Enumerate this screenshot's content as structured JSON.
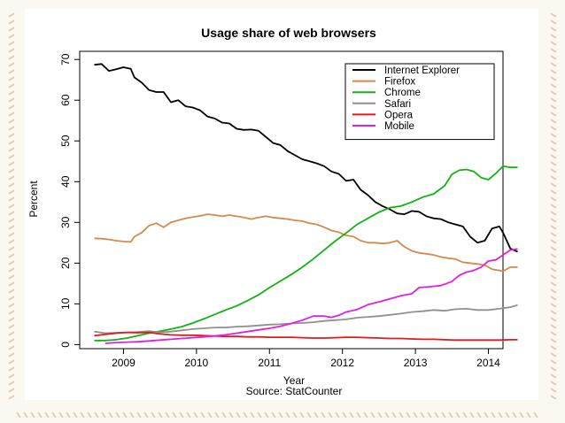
{
  "chart_data": {
    "type": "line",
    "title": "Usage share of web browsers",
    "xlabel": "Year",
    "ylabel": "Percent",
    "source": "Source: StatCounter",
    "xlim": [
      2008.4,
      2014.2
    ],
    "ylim": [
      -1,
      72
    ],
    "x_ticks": [
      2009,
      2010,
      2011,
      2012,
      2013,
      2014
    ],
    "y_ticks": [
      0,
      10,
      20,
      30,
      40,
      50,
      60,
      70
    ],
    "legend_position": "top-right",
    "grid": false,
    "series": [
      {
        "name": "Internet Explorer",
        "color": "#000000",
        "points": [
          [
            2008.6,
            68.7
          ],
          [
            2008.7,
            68.9
          ],
          [
            2008.8,
            67.2
          ],
          [
            2008.9,
            67.6
          ],
          [
            2009.0,
            68.1
          ],
          [
            2009.1,
            67.7
          ],
          [
            2009.15,
            65.6
          ],
          [
            2009.25,
            64.3
          ],
          [
            2009.35,
            62.5
          ],
          [
            2009.45,
            62.0
          ],
          [
            2009.55,
            62.0
          ],
          [
            2009.65,
            59.5
          ],
          [
            2009.75,
            60.0
          ],
          [
            2009.85,
            58.5
          ],
          [
            2009.95,
            58.2
          ],
          [
            2010.05,
            57.5
          ],
          [
            2010.15,
            56.0
          ],
          [
            2010.25,
            55.5
          ],
          [
            2010.35,
            54.5
          ],
          [
            2010.45,
            54.3
          ],
          [
            2010.55,
            53.0
          ],
          [
            2010.65,
            52.7
          ],
          [
            2010.75,
            52.8
          ],
          [
            2010.85,
            52.5
          ],
          [
            2010.95,
            51.0
          ],
          [
            2011.05,
            49.5
          ],
          [
            2011.15,
            49.0
          ],
          [
            2011.25,
            47.5
          ],
          [
            2011.35,
            46.5
          ],
          [
            2011.45,
            45.5
          ],
          [
            2011.55,
            45.0
          ],
          [
            2011.65,
            44.5
          ],
          [
            2011.75,
            43.8
          ],
          [
            2011.85,
            42.5
          ],
          [
            2011.95,
            41.9
          ],
          [
            2012.05,
            40.2
          ],
          [
            2012.15,
            40.5
          ],
          [
            2012.25,
            38.0
          ],
          [
            2012.35,
            36.7
          ],
          [
            2012.45,
            35.0
          ],
          [
            2012.55,
            34.0
          ],
          [
            2012.65,
            33.2
          ],
          [
            2012.75,
            32.2
          ],
          [
            2012.85,
            32.0
          ],
          [
            2012.95,
            32.8
          ],
          [
            2013.05,
            32.6
          ],
          [
            2013.15,
            31.5
          ],
          [
            2013.25,
            31.0
          ],
          [
            2013.35,
            30.8
          ],
          [
            2013.45,
            30.0
          ],
          [
            2013.55,
            29.5
          ],
          [
            2013.65,
            29.0
          ],
          [
            2013.75,
            26.5
          ],
          [
            2013.85,
            25.0
          ],
          [
            2013.95,
            25.5
          ],
          [
            2014.05,
            28.5
          ],
          [
            2014.15,
            29.0
          ],
          [
            2014.2,
            27.5
          ],
          [
            2014.3,
            23.6
          ],
          [
            2014.4,
            22.8
          ]
        ]
      },
      {
        "name": "Firefox",
        "color": "#d58a4b",
        "points": [
          [
            2008.6,
            26.1
          ],
          [
            2008.7,
            26.0
          ],
          [
            2008.8,
            25.8
          ],
          [
            2008.9,
            25.5
          ],
          [
            2009.0,
            25.3
          ],
          [
            2009.1,
            25.2
          ],
          [
            2009.15,
            26.5
          ],
          [
            2009.25,
            27.5
          ],
          [
            2009.35,
            29.2
          ],
          [
            2009.45,
            29.8
          ],
          [
            2009.55,
            28.8
          ],
          [
            2009.65,
            30.0
          ],
          [
            2009.75,
            30.5
          ],
          [
            2009.85,
            31.0
          ],
          [
            2009.95,
            31.3
          ],
          [
            2010.05,
            31.6
          ],
          [
            2010.15,
            32.0
          ],
          [
            2010.25,
            31.8
          ],
          [
            2010.35,
            31.5
          ],
          [
            2010.45,
            31.8
          ],
          [
            2010.55,
            31.5
          ],
          [
            2010.65,
            31.2
          ],
          [
            2010.75,
            30.8
          ],
          [
            2010.85,
            31.2
          ],
          [
            2010.95,
            31.5
          ],
          [
            2011.05,
            31.2
          ],
          [
            2011.15,
            31.0
          ],
          [
            2011.25,
            30.8
          ],
          [
            2011.35,
            30.5
          ],
          [
            2011.45,
            30.3
          ],
          [
            2011.55,
            29.8
          ],
          [
            2011.65,
            29.5
          ],
          [
            2011.75,
            28.8
          ],
          [
            2011.85,
            28.0
          ],
          [
            2011.95,
            27.6
          ],
          [
            2012.05,
            26.8
          ],
          [
            2012.15,
            26.5
          ],
          [
            2012.25,
            25.5
          ],
          [
            2012.35,
            25.0
          ],
          [
            2012.45,
            25.0
          ],
          [
            2012.55,
            24.8
          ],
          [
            2012.65,
            25.0
          ],
          [
            2012.75,
            25.5
          ],
          [
            2012.85,
            24.0
          ],
          [
            2012.95,
            23.0
          ],
          [
            2013.05,
            22.5
          ],
          [
            2013.15,
            22.3
          ],
          [
            2013.25,
            22.0
          ],
          [
            2013.35,
            21.5
          ],
          [
            2013.45,
            21.2
          ],
          [
            2013.55,
            21.0
          ],
          [
            2013.65,
            20.2
          ],
          [
            2013.75,
            20.0
          ],
          [
            2013.85,
            19.8
          ],
          [
            2013.95,
            19.5
          ],
          [
            2014.05,
            18.5
          ],
          [
            2014.15,
            18.2
          ],
          [
            2014.2,
            18.0
          ],
          [
            2014.3,
            19.0
          ],
          [
            2014.4,
            19.0
          ]
        ]
      },
      {
        "name": "Chrome",
        "color": "#12b312",
        "points": [
          [
            2008.6,
            1.0
          ],
          [
            2008.75,
            1.0
          ],
          [
            2008.9,
            1.2
          ],
          [
            2009.05,
            1.6
          ],
          [
            2009.2,
            2.2
          ],
          [
            2009.35,
            2.8
          ],
          [
            2009.5,
            3.3
          ],
          [
            2009.65,
            3.8
          ],
          [
            2009.8,
            4.4
          ],
          [
            2009.95,
            5.3
          ],
          [
            2010.1,
            6.3
          ],
          [
            2010.25,
            7.4
          ],
          [
            2010.4,
            8.5
          ],
          [
            2010.55,
            9.5
          ],
          [
            2010.7,
            10.8
          ],
          [
            2010.85,
            12.2
          ],
          [
            2011.0,
            14.0
          ],
          [
            2011.15,
            15.6
          ],
          [
            2011.3,
            17.2
          ],
          [
            2011.45,
            19.0
          ],
          [
            2011.6,
            21.0
          ],
          [
            2011.75,
            23.2
          ],
          [
            2011.9,
            25.4
          ],
          [
            2012.05,
            27.4
          ],
          [
            2012.2,
            29.5
          ],
          [
            2012.35,
            31.0
          ],
          [
            2012.5,
            32.5
          ],
          [
            2012.65,
            33.6
          ],
          [
            2012.8,
            34.0
          ],
          [
            2012.95,
            35.0
          ],
          [
            2013.1,
            36.2
          ],
          [
            2013.25,
            37.0
          ],
          [
            2013.4,
            39.0
          ],
          [
            2013.5,
            41.8
          ],
          [
            2013.6,
            42.8
          ],
          [
            2013.7,
            43.0
          ],
          [
            2013.8,
            42.5
          ],
          [
            2013.9,
            41.0
          ],
          [
            2014.0,
            40.5
          ],
          [
            2014.1,
            42.0
          ],
          [
            2014.2,
            43.8
          ],
          [
            2014.3,
            43.5
          ],
          [
            2014.4,
            43.5
          ]
        ]
      },
      {
        "name": "Safari",
        "color": "#909090",
        "points": [
          [
            2008.6,
            3.2
          ],
          [
            2008.75,
            2.8
          ],
          [
            2008.9,
            2.9
          ],
          [
            2009.05,
            3.0
          ],
          [
            2009.2,
            3.1
          ],
          [
            2009.35,
            3.3
          ],
          [
            2009.5,
            3.0
          ],
          [
            2009.65,
            3.2
          ],
          [
            2009.8,
            3.5
          ],
          [
            2009.95,
            3.8
          ],
          [
            2010.1,
            4.0
          ],
          [
            2010.25,
            4.2
          ],
          [
            2010.4,
            4.2
          ],
          [
            2010.55,
            4.4
          ],
          [
            2010.7,
            4.5
          ],
          [
            2010.85,
            4.7
          ],
          [
            2011.0,
            4.9
          ],
          [
            2011.15,
            5.0
          ],
          [
            2011.3,
            5.2
          ],
          [
            2011.45,
            5.3
          ],
          [
            2011.6,
            5.5
          ],
          [
            2011.75,
            5.8
          ],
          [
            2011.9,
            6.0
          ],
          [
            2012.05,
            6.2
          ],
          [
            2012.2,
            6.6
          ],
          [
            2012.35,
            6.8
          ],
          [
            2012.5,
            7.0
          ],
          [
            2012.65,
            7.3
          ],
          [
            2012.8,
            7.6
          ],
          [
            2012.95,
            8.0
          ],
          [
            2013.1,
            8.2
          ],
          [
            2013.25,
            8.5
          ],
          [
            2013.4,
            8.3
          ],
          [
            2013.55,
            8.7
          ],
          [
            2013.7,
            8.8
          ],
          [
            2013.85,
            8.5
          ],
          [
            2014.0,
            8.5
          ],
          [
            2014.15,
            8.8
          ],
          [
            2014.3,
            9.2
          ],
          [
            2014.4,
            9.7
          ]
        ]
      },
      {
        "name": "Opera",
        "color": "#e11a1a",
        "points": [
          [
            2008.6,
            2.2
          ],
          [
            2008.75,
            2.5
          ],
          [
            2008.9,
            2.8
          ],
          [
            2009.05,
            3.0
          ],
          [
            2009.2,
            2.9
          ],
          [
            2009.35,
            3.0
          ],
          [
            2009.5,
            2.6
          ],
          [
            2009.65,
            2.4
          ],
          [
            2009.8,
            2.3
          ],
          [
            2009.95,
            2.3
          ],
          [
            2010.1,
            2.2
          ],
          [
            2010.25,
            2.1
          ],
          [
            2010.4,
            2.0
          ],
          [
            2010.55,
            2.0
          ],
          [
            2010.7,
            1.9
          ],
          [
            2010.85,
            1.9
          ],
          [
            2011.0,
            1.8
          ],
          [
            2011.15,
            1.8
          ],
          [
            2011.3,
            1.8
          ],
          [
            2011.45,
            1.7
          ],
          [
            2011.6,
            1.6
          ],
          [
            2011.75,
            1.6
          ],
          [
            2011.9,
            1.7
          ],
          [
            2012.05,
            1.8
          ],
          [
            2012.2,
            1.8
          ],
          [
            2012.35,
            1.7
          ],
          [
            2012.5,
            1.6
          ],
          [
            2012.65,
            1.5
          ],
          [
            2012.8,
            1.5
          ],
          [
            2012.95,
            1.4
          ],
          [
            2013.1,
            1.3
          ],
          [
            2013.25,
            1.3
          ],
          [
            2013.4,
            1.2
          ],
          [
            2013.55,
            1.1
          ],
          [
            2013.7,
            1.1
          ],
          [
            2013.85,
            1.1
          ],
          [
            2014.0,
            1.1
          ],
          [
            2014.15,
            1.1
          ],
          [
            2014.3,
            1.2
          ],
          [
            2014.4,
            1.2
          ]
        ]
      },
      {
        "name": "Mobile",
        "color": "#e020e0",
        "points": [
          [
            2008.75,
            0.3
          ],
          [
            2008.9,
            0.5
          ],
          [
            2009.05,
            0.6
          ],
          [
            2009.2,
            0.7
          ],
          [
            2009.35,
            0.9
          ],
          [
            2009.5,
            1.1
          ],
          [
            2009.65,
            1.3
          ],
          [
            2009.8,
            1.5
          ],
          [
            2009.95,
            1.7
          ],
          [
            2010.1,
            1.9
          ],
          [
            2010.25,
            2.1
          ],
          [
            2010.4,
            2.4
          ],
          [
            2010.55,
            2.8
          ],
          [
            2010.7,
            3.2
          ],
          [
            2010.85,
            3.6
          ],
          [
            2011.0,
            4.0
          ],
          [
            2011.15,
            4.5
          ],
          [
            2011.3,
            5.2
          ],
          [
            2011.45,
            6.0
          ],
          [
            2011.6,
            7.0
          ],
          [
            2011.75,
            7.0
          ],
          [
            2011.85,
            6.7
          ],
          [
            2011.95,
            7.2
          ],
          [
            2012.05,
            8.0
          ],
          [
            2012.2,
            8.6
          ],
          [
            2012.35,
            9.8
          ],
          [
            2012.5,
            10.5
          ],
          [
            2012.65,
            11.2
          ],
          [
            2012.8,
            12.0
          ],
          [
            2012.95,
            12.5
          ],
          [
            2013.05,
            14.0
          ],
          [
            2013.2,
            14.2
          ],
          [
            2013.35,
            14.5
          ],
          [
            2013.5,
            15.5
          ],
          [
            2013.6,
            17.0
          ],
          [
            2013.7,
            17.8
          ],
          [
            2013.8,
            18.2
          ],
          [
            2013.9,
            19.0
          ],
          [
            2014.0,
            20.5
          ],
          [
            2014.1,
            20.8
          ],
          [
            2014.2,
            22.0
          ],
          [
            2014.3,
            23.2
          ],
          [
            2014.4,
            23.5
          ]
        ]
      }
    ]
  }
}
